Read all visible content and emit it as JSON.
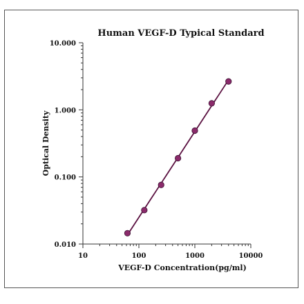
{
  "chart_data": {
    "type": "scatter",
    "title": "Human  VEGF-D  Typical  Standard",
    "xlabel": "VEGF-D  Concentration(pg/ml)",
    "ylabel": "Optical  Density",
    "x_scale": "log",
    "y_scale": "log",
    "xlim": [
      10,
      10000
    ],
    "ylim": [
      0.01,
      10
    ],
    "x_ticks": [
      "10",
      "100",
      "1000",
      "10000"
    ],
    "y_ticks": [
      "0.010",
      "0.100",
      "1.000",
      "10.000"
    ],
    "grid": false,
    "legend": "none",
    "series": [
      {
        "x": [
          62.5,
          125,
          250,
          500,
          1000,
          2000,
          4000
        ],
        "y": [
          0.0145,
          0.032,
          0.076,
          0.19,
          0.49,
          1.25,
          2.65
        ]
      }
    ],
    "marker_color": "#8b2a6b",
    "line_color": "#5a1040"
  }
}
